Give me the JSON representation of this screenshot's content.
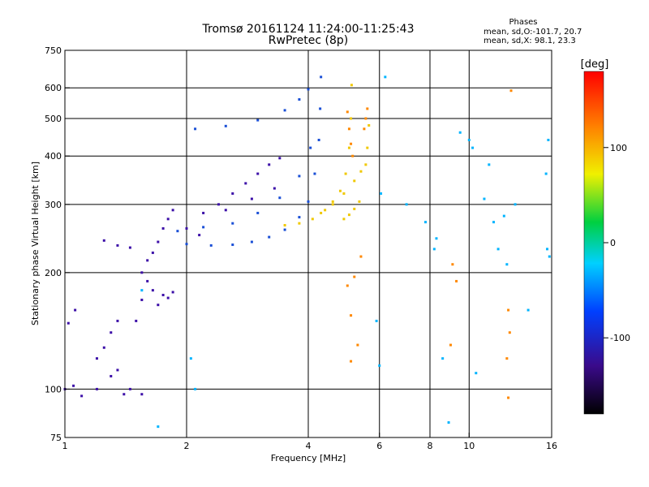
{
  "header": {
    "title_line1": "Tromsø 20161124 11:24:00-11:25:43",
    "title_line2": "RwPretec (8p)"
  },
  "phase_legend": {
    "title": "Phases",
    "line_o": "mean, sd,O:-101.7, 20.7",
    "line_x": "mean, sd,X: 98.1, 23.3"
  },
  "colorbar": {
    "label": "[deg]",
    "range": [
      -180,
      180
    ],
    "ticks": [
      "100",
      "0",
      "-100"
    ],
    "tick_values": [
      100,
      0,
      -100
    ]
  },
  "chart_data": {
    "type": "scatter",
    "xlabel": "Frequency [MHz]",
    "ylabel": "Stationary phase Virtual Height [km]",
    "x_scale": "log",
    "y_scale": "log",
    "xlim": [
      1,
      16
    ],
    "ylim": [
      75,
      750
    ],
    "grid": true,
    "x_ticks": [
      "1",
      "2",
      "4",
      "6",
      "8",
      "10",
      "16"
    ],
    "x_tick_values": [
      1,
      2,
      4,
      6,
      8,
      10,
      16
    ],
    "y_ticks": [
      "750",
      "600",
      "500",
      "400",
      "300",
      "200",
      "100",
      "75"
    ],
    "y_tick_values": [
      750,
      600,
      500,
      400,
      300,
      200,
      100,
      75
    ],
    "x_gridlines": [
      2,
      4,
      6,
      8,
      10
    ],
    "y_gridlines": [
      100,
      200,
      300,
      400,
      500,
      600
    ],
    "series": [
      {
        "mode": "O",
        "phase_deg": -101.7,
        "color": "#1a4fd6",
        "points": [
          [
            2.0,
            237
          ],
          [
            2.3,
            235
          ],
          [
            2.6,
            236
          ],
          [
            2.9,
            240
          ],
          [
            3.2,
            247
          ],
          [
            3.5,
            258
          ],
          [
            3.8,
            278
          ],
          [
            4.0,
            305
          ],
          [
            4.15,
            360
          ],
          [
            4.25,
            440
          ],
          [
            4.28,
            530
          ],
          [
            4.3,
            640
          ],
          [
            1.9,
            256
          ],
          [
            2.2,
            262
          ],
          [
            2.6,
            268
          ],
          [
            3.0,
            285
          ],
          [
            3.4,
            312
          ],
          [
            3.8,
            355
          ],
          [
            4.05,
            420
          ],
          [
            2.1,
            470
          ],
          [
            2.5,
            478
          ],
          [
            3.0,
            495
          ],
          [
            3.5,
            525
          ],
          [
            3.8,
            560
          ],
          [
            4.0,
            595
          ]
        ]
      },
      {
        "mode": "O",
        "phase_deg": -135,
        "color": "#3c0fa8",
        "points": [
          [
            1.0,
            100
          ],
          [
            1.05,
            102
          ],
          [
            1.1,
            96
          ],
          [
            1.2,
            100
          ],
          [
            1.3,
            108
          ],
          [
            1.35,
            112
          ],
          [
            1.4,
            97
          ],
          [
            1.45,
            100
          ],
          [
            1.55,
            97
          ],
          [
            1.02,
            148
          ],
          [
            1.06,
            160
          ],
          [
            1.2,
            120
          ],
          [
            1.25,
            128
          ],
          [
            1.3,
            140
          ],
          [
            1.35,
            150
          ],
          [
            1.5,
            150
          ],
          [
            1.55,
            170
          ],
          [
            1.6,
            190
          ],
          [
            1.65,
            180
          ],
          [
            1.7,
            165
          ],
          [
            1.75,
            175
          ],
          [
            1.8,
            172
          ],
          [
            1.85,
            178
          ],
          [
            1.55,
            200
          ],
          [
            1.6,
            215
          ],
          [
            1.65,
            225
          ],
          [
            1.7,
            240
          ],
          [
            1.75,
            260
          ],
          [
            1.8,
            275
          ],
          [
            1.85,
            290
          ],
          [
            2.0,
            260
          ],
          [
            2.2,
            285
          ],
          [
            2.4,
            300
          ],
          [
            2.6,
            320
          ],
          [
            2.8,
            340
          ],
          [
            3.0,
            360
          ],
          [
            3.2,
            380
          ],
          [
            3.4,
            395
          ],
          [
            1.25,
            242
          ],
          [
            1.35,
            235
          ],
          [
            1.45,
            232
          ],
          [
            2.15,
            250
          ],
          [
            2.5,
            290
          ],
          [
            2.9,
            310
          ],
          [
            3.3,
            330
          ]
        ]
      },
      {
        "mode": "X",
        "phase_deg": 98.1,
        "color": "#f0c800",
        "points": [
          [
            3.5,
            265
          ],
          [
            3.8,
            268
          ],
          [
            4.1,
            275
          ],
          [
            4.4,
            290
          ],
          [
            4.6,
            305
          ],
          [
            4.8,
            325
          ],
          [
            4.95,
            360
          ],
          [
            5.05,
            420
          ],
          [
            5.1,
            500
          ],
          [
            5.12,
            610
          ],
          [
            4.3,
            285
          ],
          [
            4.6,
            300
          ],
          [
            4.9,
            320
          ],
          [
            5.2,
            345
          ],
          [
            5.4,
            365
          ],
          [
            5.55,
            380
          ],
          [
            5.6,
            420
          ],
          [
            5.65,
            480
          ],
          [
            4.9,
            275
          ],
          [
            5.05,
            282
          ],
          [
            5.2,
            292
          ],
          [
            5.35,
            305
          ]
        ]
      },
      {
        "mode": "X",
        "phase_deg": 150,
        "color": "#ff8800",
        "points": [
          [
            5.0,
            520
          ],
          [
            5.05,
            470
          ],
          [
            5.1,
            430
          ],
          [
            5.15,
            400
          ],
          [
            5.5,
            470
          ],
          [
            5.55,
            500
          ],
          [
            5.6,
            530
          ],
          [
            5.0,
            185
          ],
          [
            5.1,
            155
          ],
          [
            5.2,
            195
          ],
          [
            5.4,
            220
          ],
          [
            5.3,
            130
          ],
          [
            5.1,
            118
          ],
          [
            9.0,
            130
          ],
          [
            9.1,
            210
          ],
          [
            9.3,
            190
          ],
          [
            12.5,
            160
          ],
          [
            12.6,
            140
          ],
          [
            12.4,
            120
          ],
          [
            12.5,
            95
          ],
          [
            12.7,
            590
          ]
        ]
      },
      {
        "mode": "noise",
        "phase_deg": -20,
        "color": "#00b4ff",
        "points": [
          [
            1.55,
            180
          ],
          [
            2.05,
            120
          ],
          [
            2.1,
            100
          ],
          [
            5.9,
            150
          ],
          [
            6.0,
            115
          ],
          [
            6.05,
            320
          ],
          [
            6.2,
            640
          ],
          [
            7.0,
            300
          ],
          [
            7.8,
            270
          ],
          [
            8.3,
            245
          ],
          [
            8.2,
            230
          ],
          [
            8.6,
            120
          ],
          [
            9.5,
            460
          ],
          [
            10.0,
            440
          ],
          [
            10.2,
            420
          ],
          [
            10.4,
            110
          ],
          [
            10.9,
            310
          ],
          [
            11.2,
            380
          ],
          [
            11.5,
            270
          ],
          [
            11.8,
            230
          ],
          [
            12.2,
            280
          ],
          [
            12.4,
            210
          ],
          [
            13.0,
            300
          ],
          [
            14.0,
            160
          ],
          [
            15.5,
            360
          ],
          [
            15.6,
            230
          ],
          [
            15.8,
            220
          ],
          [
            15.7,
            440
          ],
          [
            8.9,
            82
          ],
          [
            1.7,
            80
          ]
        ]
      }
    ]
  }
}
